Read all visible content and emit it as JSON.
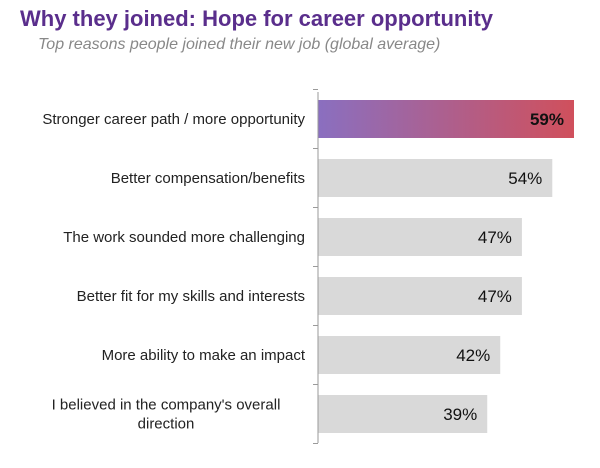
{
  "header": {
    "title": "Why they joined: Hope for career opportunity",
    "subtitle": "Top reasons people joined their new job (global average)"
  },
  "colors": {
    "title": "#5a2e8c",
    "bar_default": "#d9d9d9",
    "highlight_start": "#8a6fc0",
    "highlight_end": "#d0505c",
    "highlight_label": "#ffffff",
    "axis": "#9a9a9a"
  },
  "chart_data": {
    "type": "bar",
    "orientation": "horizontal",
    "categories": [
      "Stronger career path / more opportunity",
      "Better compensation/benefits",
      "The work sounded more challenging",
      "Better fit for my skills and interests",
      "More ability to make an impact",
      "I believed in the company's overall direction"
    ],
    "category_lines": [
      [
        "Stronger career path / more opportunity"
      ],
      [
        "Better compensation/benefits"
      ],
      [
        "The work sounded more challenging"
      ],
      [
        "Better fit for my skills and interests"
      ],
      [
        "More ability to make an impact"
      ],
      [
        "I believed in the company's overall",
        "direction"
      ]
    ],
    "values": [
      59,
      54,
      47,
      47,
      42,
      39
    ],
    "value_labels": [
      "59%",
      "54%",
      "47%",
      "47%",
      "42%",
      "39%"
    ],
    "highlighted_index": 0,
    "xlim": [
      0,
      59
    ],
    "grid": false,
    "legend": "none"
  }
}
